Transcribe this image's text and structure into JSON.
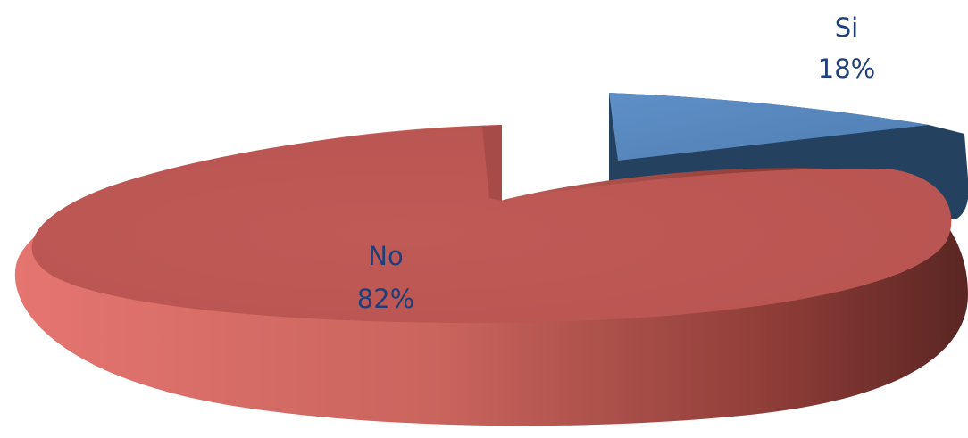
{
  "chart_data": {
    "type": "pie",
    "style": "3d-exploded",
    "slices": [
      {
        "label": "Si",
        "value": 18,
        "value_label": "18%",
        "color": "#5787BD",
        "side_color": "#24425F"
      },
      {
        "label": "No",
        "value": 82,
        "value_label": "82%",
        "color": "#C05A57",
        "side_color": "#5E2A26"
      }
    ],
    "title": "",
    "legend": "none"
  }
}
